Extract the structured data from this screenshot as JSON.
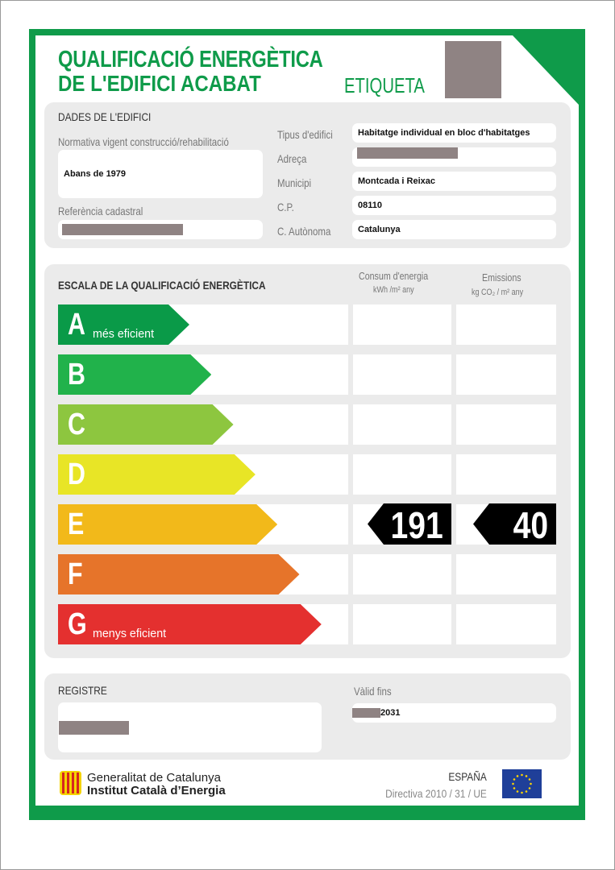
{
  "header": {
    "title_line1": "QUALIFICACIÓ ENERGÈTICA",
    "title_line2": "DE L'EDIFICI ACABAT",
    "label": "ETIQUETA"
  },
  "building": {
    "heading": "DADES DE L'EDIFICI",
    "normativa_label": "Normativa vigent construcció/rehabilitació",
    "normativa_value": "Abans de 1979",
    "referencia_label": "Referència cadastral",
    "tipus_label": "Tipus d'edifici",
    "tipus_value": "Habitatge individual en bloc d'habitatges",
    "adreca_label": "Adreça",
    "municipi_label": "Municipi",
    "municipi_value": "Montcada i Reixac",
    "cp_label": "C.P.",
    "cp_value": "08110",
    "ca_label": "C. Autònoma",
    "ca_value": "Catalunya"
  },
  "scale": {
    "heading": "ESCALA DE LA QUALIFICACIÓ ENERGÈTICA",
    "col1_title": "Consum d'energia",
    "col1_unit": "kWh /m² any",
    "col2_title": "Emissions",
    "col2_unit": "kg CO₂ / m² any",
    "classes": [
      {
        "letter": "A",
        "sub": "més eficient",
        "color": "#0a9a48"
      },
      {
        "letter": "B",
        "sub": "",
        "color": "#21b24b"
      },
      {
        "letter": "C",
        "sub": "",
        "color": "#8dc63f"
      },
      {
        "letter": "D",
        "sub": "",
        "color": "#e8e526"
      },
      {
        "letter": "E",
        "sub": "",
        "color": "#f2b91a"
      },
      {
        "letter": "F",
        "sub": "",
        "color": "#e6742a"
      },
      {
        "letter": "G",
        "sub": "menys eficient",
        "color": "#e4302f"
      }
    ],
    "rating_class": "E",
    "energy_value": "191",
    "emissions_value": "40"
  },
  "registre": {
    "heading": "REGISTRE",
    "valid_label": "Vàlid fins",
    "valid_value": "2031"
  },
  "footer": {
    "org1": "Generalitat de Catalunya",
    "org2": "Institut Català d’Energia",
    "country": "ESPAÑA",
    "directive": "Directiva 2010 / 31 / UE"
  },
  "colors": {
    "brand_green": "#0f9b4a",
    "panel_gray": "#ebebeb"
  }
}
